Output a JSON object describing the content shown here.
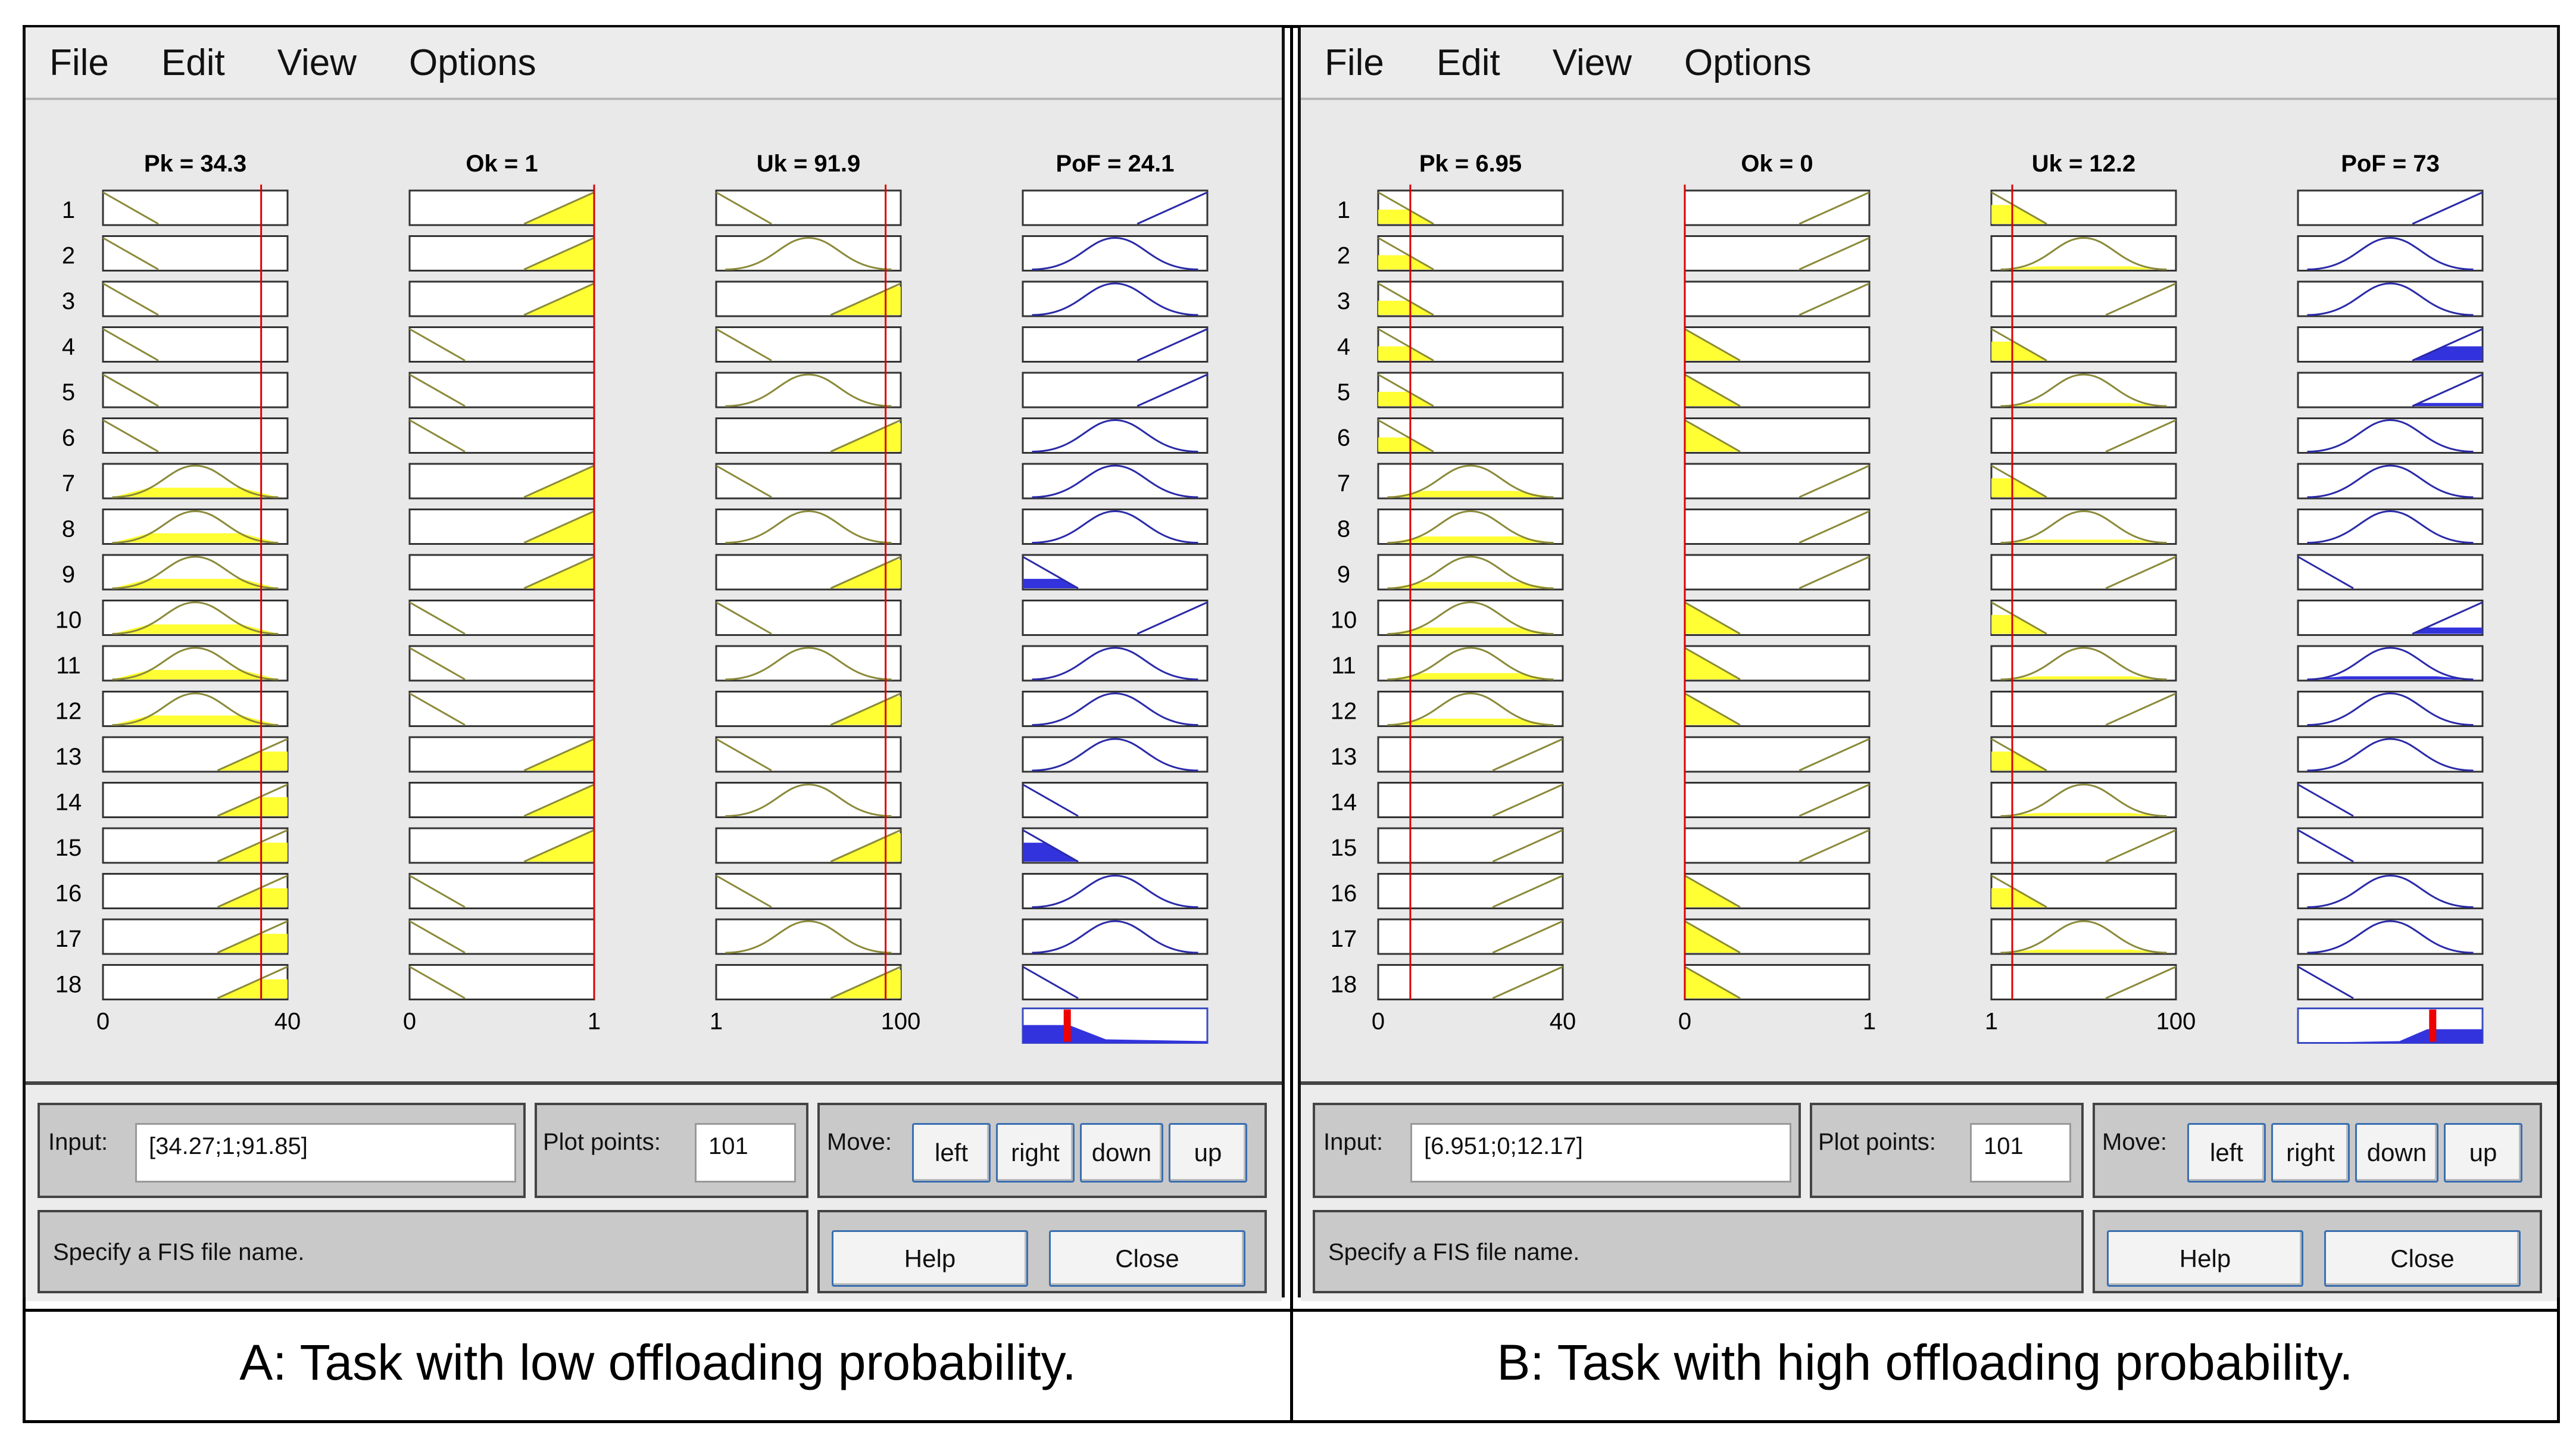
{
  "panels": [
    {
      "id": "a",
      "menu": [
        "File",
        "Edit",
        "View",
        "Options"
      ],
      "columns": [
        {
          "title": "Pk = 34.3",
          "axis": [
            "0",
            "40"
          ]
        },
        {
          "title": "Ok = 1",
          "axis": [
            "0",
            "1"
          ]
        },
        {
          "title": "Uk = 91.9",
          "axis": [
            "1",
            "100"
          ]
        },
        {
          "title": "PoF = 24.1",
          "axis": []
        }
      ],
      "rule_numbers": [
        "1",
        "2",
        "3",
        "4",
        "5",
        "6",
        "7",
        "8",
        "9",
        "10",
        "11",
        "12",
        "13",
        "14",
        "15",
        "16",
        "17",
        "18"
      ],
      "input_label": "Input:",
      "input_value": "[34.27;1;91.85]",
      "plot_points_label": "Plot points:",
      "plot_points_value": "101",
      "move_label": "Move:",
      "move_buttons": [
        "left",
        "right",
        "down",
        "up"
      ],
      "status": "Specify a FIS file name.",
      "help": "Help",
      "close": "Close",
      "caption": "A: Task with low offloading probability."
    },
    {
      "id": "b",
      "menu": [
        "File",
        "Edit",
        "View",
        "Options"
      ],
      "columns": [
        {
          "title": "Pk = 6.95",
          "axis": [
            "0",
            "40"
          ]
        },
        {
          "title": "Ok = 0",
          "axis": [
            "0",
            "1"
          ]
        },
        {
          "title": "Uk = 12.2",
          "axis": [
            "1",
            "100"
          ]
        },
        {
          "title": "PoF = 73",
          "axis": []
        }
      ],
      "rule_numbers": [
        "1",
        "2",
        "3",
        "4",
        "5",
        "6",
        "7",
        "8",
        "9",
        "10",
        "11",
        "12",
        "13",
        "14",
        "15",
        "16",
        "17",
        "18"
      ],
      "input_label": "Input:",
      "input_value": "[6.951;0;12.17]",
      "plot_points_label": "Plot points:",
      "plot_points_value": "101",
      "move_label": "Move:",
      "move_buttons": [
        "left",
        "right",
        "down",
        "up"
      ],
      "status": "Specify a FIS file name.",
      "help": "Help",
      "close": "Close",
      "caption": "B: Task with high offloading probability."
    }
  ],
  "rules": {
    "a": {
      "pk_shapes": [
        "low",
        "low",
        "low",
        "low",
        "low",
        "low",
        "mid",
        "mid",
        "mid",
        "mid",
        "mid",
        "mid",
        "high",
        "high",
        "high",
        "high",
        "high",
        "high"
      ],
      "pk_fill": [
        0,
        0,
        0,
        0,
        0,
        0,
        0.3,
        0.3,
        0.3,
        0.3,
        0.3,
        0.3,
        0.6,
        0.6,
        0.6,
        0.6,
        0.6,
        0.6
      ],
      "ok_shapes": [
        "high",
        "high",
        "high",
        "low",
        "low",
        "low",
        "high",
        "high",
        "high",
        "low",
        "low",
        "low",
        "high",
        "high",
        "high",
        "low",
        "low",
        "low"
      ],
      "ok_fill": [
        1,
        1,
        1,
        0,
        0,
        0,
        1,
        1,
        1,
        0,
        0,
        0,
        1,
        1,
        1,
        0,
        0,
        0
      ],
      "uk_shapes": [
        "low",
        "mid",
        "high",
        "low",
        "mid",
        "high",
        "low",
        "mid",
        "high",
        "low",
        "mid",
        "high",
        "low",
        "mid",
        "high",
        "low",
        "mid",
        "high"
      ],
      "uk_fill": [
        0,
        0,
        0.9,
        0,
        0,
        0.9,
        0,
        0,
        0.9,
        0,
        0,
        0.9,
        0,
        0,
        0.9,
        0,
        0,
        0.9
      ],
      "pof_shapes": [
        "high",
        "mid",
        "mid",
        "high",
        "high",
        "mid",
        "mid",
        "mid",
        "low",
        "high",
        "mid",
        "mid",
        "mid",
        "low",
        "low",
        "mid",
        "mid",
        "low"
      ],
      "pof_fill": [
        0,
        0,
        0,
        0,
        0,
        0,
        0,
        0,
        0.3,
        0,
        0,
        0,
        0,
        0,
        0.6,
        0,
        0,
        0
      ],
      "input_fraction": [
        0.857,
        1.0,
        0.918
      ],
      "output_fraction": 0.241
    },
    "b": {
      "pk_shapes": [
        "low",
        "low",
        "low",
        "low",
        "low",
        "low",
        "mid",
        "mid",
        "mid",
        "mid",
        "mid",
        "mid",
        "high",
        "high",
        "high",
        "high",
        "high",
        "high"
      ],
      "pk_fill": [
        0.45,
        0.45,
        0.45,
        0.45,
        0.45,
        0.45,
        0.2,
        0.2,
        0.2,
        0.2,
        0.2,
        0.2,
        0,
        0,
        0,
        0,
        0,
        0
      ],
      "ok_shapes": [
        "high",
        "high",
        "high",
        "low",
        "low",
        "low",
        "high",
        "high",
        "high",
        "low",
        "low",
        "low",
        "high",
        "high",
        "high",
        "low",
        "low",
        "low"
      ],
      "ok_fill": [
        0,
        0,
        0,
        1,
        1,
        1,
        0,
        0,
        0,
        1,
        1,
        1,
        0,
        0,
        0,
        1,
        1,
        1
      ],
      "uk_shapes": [
        "low",
        "mid",
        "high",
        "low",
        "mid",
        "high",
        "low",
        "mid",
        "high",
        "low",
        "mid",
        "high",
        "low",
        "mid",
        "high",
        "low",
        "mid",
        "high"
      ],
      "uk_fill": [
        0.6,
        0.1,
        0,
        0.6,
        0.1,
        0,
        0.6,
        0.1,
        0,
        0.6,
        0.1,
        0,
        0.6,
        0.1,
        0,
        0.6,
        0.1,
        0
      ],
      "pof_shapes": [
        "high",
        "mid",
        "mid",
        "high",
        "high",
        "mid",
        "mid",
        "mid",
        "low",
        "high",
        "mid",
        "mid",
        "mid",
        "low",
        "low",
        "mid",
        "mid",
        "low"
      ],
      "pof_fill": [
        0,
        0,
        0,
        0.45,
        0.1,
        0,
        0,
        0,
        0,
        0.2,
        0.1,
        0,
        0,
        0,
        0,
        0,
        0,
        0
      ],
      "input_fraction": [
        0.174,
        0.0,
        0.113
      ],
      "output_fraction": 0.73
    }
  },
  "colors": {
    "antecedent_fill": "#ffff33",
    "consequent_fill": "#3333dd",
    "input_line": "#dd0000",
    "output_marker": "#ee0000"
  }
}
